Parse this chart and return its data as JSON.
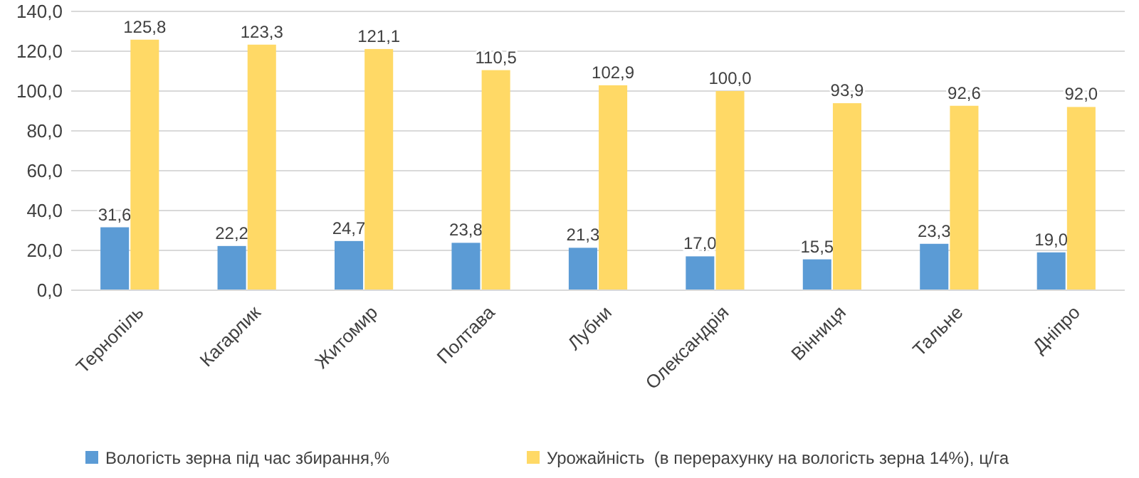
{
  "chart_data": {
    "type": "bar",
    "categories": [
      "Тернопіль",
      "Кагарлик",
      "Житомир",
      "Полтава",
      "Лубни",
      "Олександрія",
      "Вінниця",
      "Тальне",
      "Дніпро"
    ],
    "series": [
      {
        "name": "Вологість зерна під час збирання,%",
        "color": "#5b9bd5",
        "values": [
          31.6,
          22.2,
          24.7,
          23.8,
          21.3,
          17.0,
          15.5,
          23.3,
          19.0
        ],
        "value_labels": [
          "31,6",
          "22,2",
          "24,7",
          "23,8",
          "21,3",
          "17,0",
          "15,5",
          "23,3",
          "19,0"
        ]
      },
      {
        "name": "Урожайність  (в перерахунку на вологість зерна 14%), ц/га",
        "color": "#ffd966",
        "values": [
          125.8,
          123.3,
          121.1,
          110.5,
          102.9,
          100.0,
          93.9,
          92.6,
          92.0
        ],
        "value_labels": [
          "125,8",
          "123,3",
          "121,1",
          "110,5",
          "102,9",
          "100,0",
          "93,9",
          "92,6",
          "92,0"
        ]
      }
    ],
    "ylim": [
      0,
      140
    ],
    "yticks": [
      {
        "value": 0,
        "label": "0,0"
      },
      {
        "value": 20,
        "label": "20,0"
      },
      {
        "value": 40,
        "label": "40,0"
      },
      {
        "value": 60,
        "label": "60,0"
      },
      {
        "value": 80,
        "label": "80,0"
      },
      {
        "value": 100,
        "label": "100,0"
      },
      {
        "value": 120,
        "label": "120,0"
      },
      {
        "value": 140,
        "label": "140,0"
      }
    ],
    "grid": "y",
    "legend": "bottom"
  }
}
